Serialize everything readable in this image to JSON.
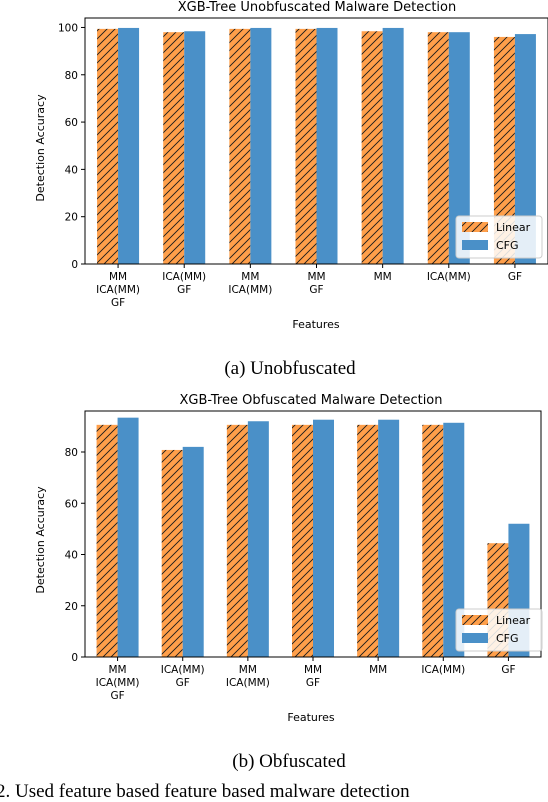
{
  "chart_data": [
    {
      "type": "bar",
      "title": "XGB-Tree Unobfuscated Malware Detection",
      "xlabel": "Features",
      "ylabel": "Detection Accuracy",
      "ylim": [
        0,
        104
      ],
      "yticks": [
        0,
        20,
        40,
        60,
        80,
        100
      ],
      "categories": [
        "MM\nICA(MM)\nGF",
        "ICA(MM)\nGF",
        "MM\nICA(MM)",
        "MM\nGF",
        "MM",
        "ICA(MM)",
        "GF"
      ],
      "series": [
        {
          "name": "Linear",
          "color": "#ff9f4a",
          "hatch": true,
          "values": [
            99.4,
            98.0,
            99.4,
            99.4,
            98.4,
            98.0,
            96.0
          ]
        },
        {
          "name": "CFG",
          "color": "#4a90c8",
          "hatch": false,
          "values": [
            99.8,
            98.4,
            99.8,
            99.8,
            99.8,
            98.0,
            97.2
          ]
        }
      ],
      "legend_position": "lower-right",
      "grid": false,
      "caption": "(a) Unobfuscated"
    },
    {
      "type": "bar",
      "title": "XGB-Tree Obfuscated Malware Detection",
      "xlabel": "Features",
      "ylabel": "Detection Accuracy",
      "ylim": [
        0,
        96
      ],
      "yticks": [
        0,
        20,
        40,
        60,
        80
      ],
      "categories": [
        "MM\nICA(MM)\nGF",
        "ICA(MM)\nGF",
        "MM\nICA(MM)",
        "MM\nGF",
        "MM",
        "ICA(MM)",
        "GF"
      ],
      "series": [
        {
          "name": "Linear",
          "color": "#ff9f4a",
          "hatch": true,
          "values": [
            90.6,
            80.8,
            90.6,
            90.6,
            90.6,
            90.6,
            44.4
          ]
        },
        {
          "name": "CFG",
          "color": "#4a90c8",
          "hatch": false,
          "values": [
            93.4,
            82.0,
            92.0,
            92.6,
            92.6,
            91.4,
            52.0
          ]
        }
      ],
      "legend_position": "lower-right",
      "grid": false,
      "caption": "(b) Obfuscated"
    }
  ],
  "footer_text": "2. Used feature based feature based malware detection"
}
